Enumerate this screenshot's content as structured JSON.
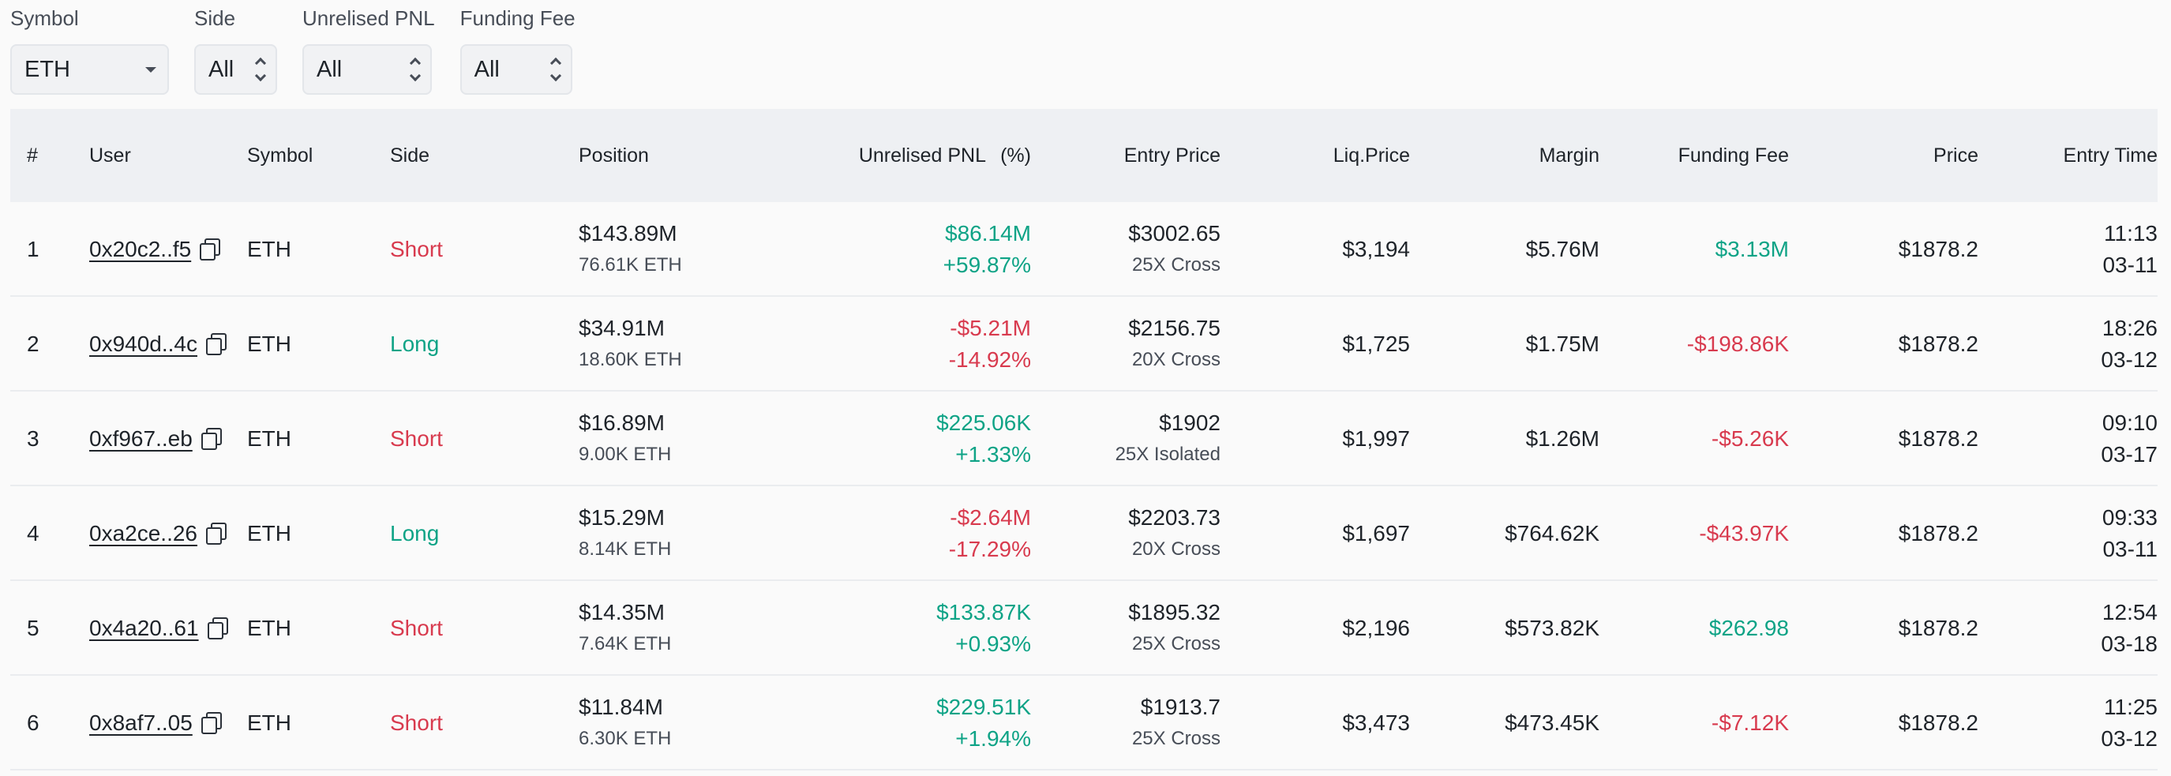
{
  "filters": [
    {
      "label": "Symbol",
      "value": "ETH",
      "control": "dropdown"
    },
    {
      "label": "Side",
      "value": "All",
      "control": "stepper"
    },
    {
      "label": "Unrelised PNL",
      "value": "All",
      "control": "stepper"
    },
    {
      "label": "Funding Fee",
      "value": "All",
      "control": "stepper"
    }
  ],
  "colors": {
    "positive": "#0ea386",
    "negative": "#d83a4e",
    "header_bg": "#eef0f3"
  },
  "table": {
    "headers": {
      "num": "#",
      "user": "User",
      "symbol": "Symbol",
      "side": "Side",
      "position": "Position",
      "pnl": "Unrelised PNL",
      "pct": "(%)",
      "entry": "Entry Price",
      "liq": "Liq.Price",
      "margin": "Margin",
      "funding": "Funding Fee",
      "price": "Price",
      "time": "Entry Time"
    },
    "rows": [
      {
        "num": "1",
        "user": "0x20c2..f5",
        "symbol": "ETH",
        "side": "Short",
        "position_usd": "$143.89M",
        "position_eth": "76.61K ETH",
        "pnl": "$86.14M",
        "pnl_pct": "+59.87%",
        "entry_price": "$3002.65",
        "leverage": "25X Cross",
        "liq_price": "$3,194",
        "margin": "$5.76M",
        "funding_fee": "$3.13M",
        "price": "$1878.2",
        "time": "11:13",
        "date": "03-11"
      },
      {
        "num": "2",
        "user": "0x940d..4c",
        "symbol": "ETH",
        "side": "Long",
        "position_usd": "$34.91M",
        "position_eth": "18.60K ETH",
        "pnl": "-$5.21M",
        "pnl_pct": "-14.92%",
        "entry_price": "$2156.75",
        "leverage": "20X Cross",
        "liq_price": "$1,725",
        "margin": "$1.75M",
        "funding_fee": "-$198.86K",
        "price": "$1878.2",
        "time": "18:26",
        "date": "03-12"
      },
      {
        "num": "3",
        "user": "0xf967..eb",
        "symbol": "ETH",
        "side": "Short",
        "position_usd": "$16.89M",
        "position_eth": "9.00K ETH",
        "pnl": "$225.06K",
        "pnl_pct": "+1.33%",
        "entry_price": "$1902",
        "leverage": "25X Isolated",
        "liq_price": "$1,997",
        "margin": "$1.26M",
        "funding_fee": "-$5.26K",
        "price": "$1878.2",
        "time": "09:10",
        "date": "03-17"
      },
      {
        "num": "4",
        "user": "0xa2ce..26",
        "symbol": "ETH",
        "side": "Long",
        "position_usd": "$15.29M",
        "position_eth": "8.14K ETH",
        "pnl": "-$2.64M",
        "pnl_pct": "-17.29%",
        "entry_price": "$2203.73",
        "leverage": "20X Cross",
        "liq_price": "$1,697",
        "margin": "$764.62K",
        "funding_fee": "-$43.97K",
        "price": "$1878.2",
        "time": "09:33",
        "date": "03-11"
      },
      {
        "num": "5",
        "user": "0x4a20..61",
        "symbol": "ETH",
        "side": "Short",
        "position_usd": "$14.35M",
        "position_eth": "7.64K ETH",
        "pnl": "$133.87K",
        "pnl_pct": "+0.93%",
        "entry_price": "$1895.32",
        "leverage": "25X Cross",
        "liq_price": "$2,196",
        "margin": "$573.82K",
        "funding_fee": "$262.98",
        "price": "$1878.2",
        "time": "12:54",
        "date": "03-18"
      },
      {
        "num": "6",
        "user": "0x8af7..05",
        "symbol": "ETH",
        "side": "Short",
        "position_usd": "$11.84M",
        "position_eth": "6.30K ETH",
        "pnl": "$229.51K",
        "pnl_pct": "+1.94%",
        "entry_price": "$1913.7",
        "leverage": "25X Cross",
        "liq_price": "$3,473",
        "margin": "$473.45K",
        "funding_fee": "-$7.12K",
        "price": "$1878.2",
        "time": "11:25",
        "date": "03-12"
      }
    ]
  }
}
